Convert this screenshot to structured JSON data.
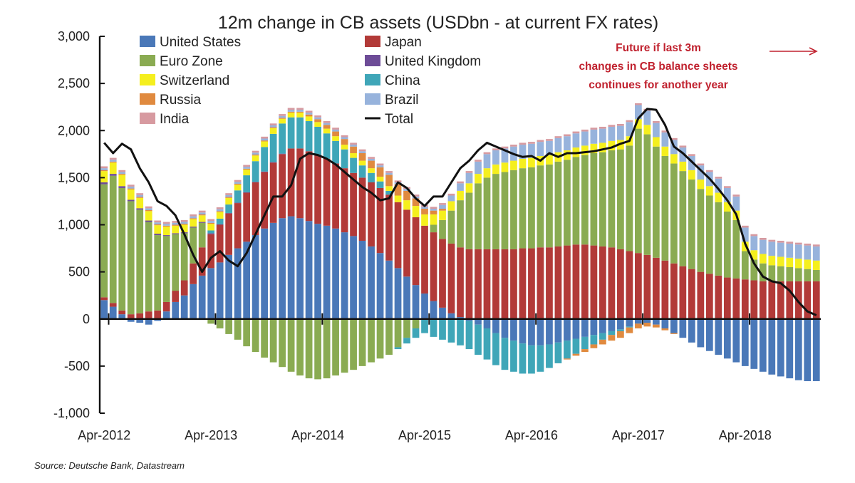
{
  "chart_data": {
    "type": "bar",
    "stacked": true,
    "title": "12m change in CB assets (USDbn - at current FX rates)",
    "source": "Source: Deutsche Bank, Datastream",
    "annotation": [
      "Future if last 3m",
      "changes in CB balance sheets",
      "continues for another year"
    ],
    "xlabel": "",
    "ylabel": "",
    "ylim": [
      -1000,
      3000
    ],
    "yticks": [
      -1000,
      -500,
      0,
      500,
      1000,
      1500,
      2000,
      2500,
      3000
    ],
    "ytick_labels": [
      "-1,000",
      "-500",
      "0",
      "500",
      "1,000",
      "1,500",
      "2,000",
      "2,500",
      "3,000"
    ],
    "xtick_labels": [
      "Apr-2012",
      "Apr-2013",
      "Apr-2014",
      "Apr-2015",
      "Apr-2016",
      "Apr-2017",
      "Apr-2018"
    ],
    "xtick_index": [
      0,
      12,
      24,
      36,
      48,
      60,
      72
    ],
    "legend_position": "top-left",
    "grid": false,
    "categories": [
      "Apr-2012",
      "May-2012",
      "Jun-2012",
      "Jul-2012",
      "Aug-2012",
      "Sep-2012",
      "Oct-2012",
      "Nov-2012",
      "Dec-2012",
      "Jan-2013",
      "Feb-2013",
      "Mar-2013",
      "Apr-2013",
      "May-2013",
      "Jun-2013",
      "Jul-2013",
      "Aug-2013",
      "Sep-2013",
      "Oct-2013",
      "Nov-2013",
      "Dec-2013",
      "Jan-2014",
      "Feb-2014",
      "Mar-2014",
      "Apr-2014",
      "May-2014",
      "Jun-2014",
      "Jul-2014",
      "Aug-2014",
      "Sep-2014",
      "Oct-2014",
      "Nov-2014",
      "Dec-2014",
      "Jan-2015",
      "Feb-2015",
      "Mar-2015",
      "Apr-2015",
      "May-2015",
      "Jun-2015",
      "Jul-2015",
      "Aug-2015",
      "Sep-2015",
      "Oct-2015",
      "Nov-2015",
      "Dec-2015",
      "Jan-2016",
      "Feb-2016",
      "Mar-2016",
      "Apr-2016",
      "May-2016",
      "Jun-2016",
      "Jul-2016",
      "Aug-2016",
      "Sep-2016",
      "Oct-2016",
      "Nov-2016",
      "Dec-2016",
      "Jan-2017",
      "Feb-2017",
      "Mar-2017",
      "Apr-2017",
      "May-2017",
      "Jun-2017",
      "Jul-2017",
      "Aug-2017",
      "Sep-2017",
      "Oct-2017",
      "Nov-2017",
      "Dec-2017",
      "Jan-2018",
      "Feb-2018",
      "Mar-2018",
      "Apr-2018",
      "May-2018",
      "Jun-2018",
      "Jul-2018",
      "Aug-2018",
      "Sep-2018",
      "Oct-2018",
      "Nov-2018",
      "Dec-2018"
    ],
    "series": [
      {
        "name": "United States",
        "color": "#4a78b8",
        "values": [
          200,
          130,
          50,
          -30,
          -40,
          -60,
          -20,
          80,
          180,
          250,
          370,
          460,
          540,
          600,
          680,
          750,
          820,
          890,
          960,
          1020,
          1070,
          1090,
          1070,
          1040,
          1010,
          990,
          960,
          920,
          880,
          830,
          770,
          700,
          620,
          540,
          450,
          360,
          270,
          190,
          120,
          60,
          20,
          -20,
          -60,
          -100,
          -150,
          -200,
          -230,
          -260,
          -280,
          -280,
          -270,
          -250,
          -230,
          -210,
          -190,
          -170,
          -150,
          -130,
          -110,
          -80,
          -50,
          -40,
          -60,
          -100,
          -150,
          -200,
          -250,
          -300,
          -340,
          -380,
          -420,
          -460,
          -500,
          -530,
          -560,
          -590,
          -610,
          -630,
          -650,
          -660,
          -660
        ]
      },
      {
        "name": "Japan",
        "color": "#b23a38",
        "values": [
          30,
          40,
          40,
          50,
          60,
          80,
          90,
          100,
          120,
          160,
          220,
          300,
          360,
          400,
          440,
          480,
          520,
          560,
          600,
          640,
          680,
          720,
          740,
          740,
          730,
          710,
          690,
          680,
          670,
          670,
          680,
          690,
          700,
          700,
          710,
          720,
          720,
          730,
          730,
          740,
          740,
          740,
          740,
          740,
          740,
          740,
          740,
          750,
          750,
          760,
          760,
          770,
          780,
          790,
          790,
          780,
          770,
          760,
          740,
          720,
          700,
          680,
          650,
          620,
          590,
          560,
          530,
          500,
          480,
          460,
          440,
          430,
          420,
          410,
          400,
          400,
          400,
          400,
          400,
          400,
          400
        ]
      },
      {
        "name": "Euro Zone",
        "color": "#8aab52",
        "values": [
          1200,
          1350,
          1300,
          1200,
          1100,
          950,
          800,
          700,
          600,
          500,
          380,
          260,
          -50,
          -100,
          -160,
          -220,
          -290,
          -350,
          -410,
          -460,
          -510,
          -560,
          -600,
          -630,
          -640,
          -630,
          -600,
          -570,
          -540,
          -500,
          -460,
          -420,
          -380,
          -300,
          -200,
          -100,
          0,
          80,
          200,
          350,
          500,
          600,
          700,
          760,
          800,
          820,
          840,
          850,
          860,
          870,
          880,
          900,
          910,
          930,
          950,
          980,
          1000,
          1030,
          1060,
          1120,
          1320,
          1280,
          1180,
          1110,
          1060,
          1010,
          950,
          880,
          830,
          780,
          700,
          620,
          300,
          220,
          190,
          170,
          160,
          150,
          140,
          130,
          120
        ]
      },
      {
        "name": "United Kingdom",
        "color": "#6d4c97",
        "values": [
          20,
          20,
          20,
          15,
          15,
          15,
          15,
          10,
          10,
          10,
          10,
          10,
          10,
          5,
          5,
          5,
          5,
          5,
          5,
          5,
          5,
          0,
          0,
          0,
          0,
          0,
          0,
          0,
          0,
          0,
          0,
          0,
          0,
          0,
          0,
          0,
          0,
          0,
          0,
          0,
          0,
          0,
          0,
          0,
          0,
          0,
          0,
          0,
          0,
          0,
          0,
          0,
          0,
          0,
          0,
          0,
          0,
          0,
          0,
          0,
          0,
          0,
          0,
          0,
          0,
          0,
          0,
          0,
          0,
          0,
          0,
          0,
          0,
          0,
          0,
          0,
          0,
          0,
          0,
          0,
          0
        ]
      },
      {
        "name": "China",
        "color": "#3fa6b8",
        "values": [
          0,
          0,
          0,
          0,
          0,
          0,
          0,
          0,
          0,
          0,
          0,
          0,
          30,
          60,
          90,
          130,
          180,
          220,
          260,
          300,
          320,
          330,
          330,
          320,
          300,
          270,
          240,
          200,
          160,
          130,
          100,
          70,
          40,
          -20,
          -60,
          -100,
          -150,
          -190,
          -220,
          -250,
          -280,
          -300,
          -320,
          -330,
          -340,
          -340,
          -330,
          -320,
          -300,
          -280,
          -250,
          -220,
          -190,
          -160,
          -130,
          -100,
          -70,
          -40,
          -20,
          -10,
          0,
          0,
          0,
          0,
          0,
          0,
          0,
          0,
          0,
          0,
          0,
          0,
          0,
          0,
          0,
          0,
          0,
          0,
          0,
          0,
          0
        ]
      },
      {
        "name": "Switzerland",
        "color": "#f5ef1e",
        "values": [
          120,
          120,
          120,
          110,
          110,
          100,
          90,
          90,
          80,
          80,
          80,
          70,
          70,
          70,
          70,
          60,
          60,
          60,
          60,
          60,
          50,
          50,
          50,
          50,
          50,
          50,
          50,
          50,
          50,
          50,
          50,
          50,
          50,
          70,
          100,
          120,
          120,
          110,
          100,
          100,
          100,
          100,
          100,
          100,
          100,
          100,
          100,
          100,
          100,
          100,
          100,
          100,
          100,
          100,
          100,
          100,
          100,
          100,
          100,
          100,
          100,
          100,
          100,
          100,
          100,
          100,
          100,
          100,
          100,
          100,
          100,
          100,
          100,
          100,
          100,
          100,
          100,
          100,
          100,
          100,
          100
        ]
      },
      {
        "name": "Russia",
        "color": "#e08a3f",
        "values": [
          10,
          10,
          10,
          10,
          10,
          10,
          10,
          10,
          10,
          10,
          10,
          10,
          10,
          10,
          10,
          10,
          10,
          10,
          10,
          10,
          10,
          10,
          10,
          20,
          30,
          40,
          50,
          60,
          70,
          80,
          80,
          100,
          120,
          120,
          100,
          80,
          60,
          40,
          20,
          0,
          0,
          0,
          0,
          0,
          0,
          0,
          0,
          0,
          0,
          0,
          0,
          0,
          -10,
          -20,
          -30,
          -40,
          -50,
          -60,
          -70,
          -60,
          -50,
          -40,
          -30,
          -20,
          -10,
          0,
          0,
          0,
          0,
          0,
          0,
          0,
          0,
          0,
          0,
          0,
          0,
          0,
          0,
          0,
          0
        ]
      },
      {
        "name": "Brazil",
        "color": "#97b3dc",
        "values": [
          20,
          20,
          20,
          20,
          20,
          20,
          20,
          20,
          20,
          20,
          20,
          20,
          20,
          20,
          20,
          20,
          20,
          20,
          20,
          20,
          20,
          20,
          20,
          20,
          20,
          20,
          20,
          20,
          20,
          20,
          20,
          20,
          20,
          20,
          20,
          20,
          20,
          20,
          40,
          60,
          80,
          110,
          130,
          150,
          150,
          150,
          150,
          150,
          150,
          150,
          150,
          150,
          150,
          150,
          150,
          150,
          150,
          150,
          150,
          150,
          150,
          150,
          150,
          150,
          150,
          150,
          150,
          150,
          150,
          150,
          150,
          150,
          150,
          150,
          150,
          150,
          150,
          150,
          150,
          150,
          150
        ]
      },
      {
        "name": "India",
        "color": "#d79aa0",
        "values": [
          20,
          20,
          20,
          20,
          20,
          20,
          20,
          20,
          20,
          20,
          20,
          20,
          20,
          20,
          20,
          20,
          20,
          20,
          20,
          20,
          20,
          20,
          20,
          20,
          20,
          20,
          20,
          20,
          20,
          20,
          20,
          20,
          20,
          20,
          20,
          20,
          20,
          20,
          20,
          20,
          20,
          20,
          20,
          20,
          20,
          20,
          20,
          20,
          20,
          20,
          20,
          20,
          20,
          20,
          20,
          20,
          20,
          20,
          20,
          20,
          20,
          20,
          20,
          20,
          20,
          20,
          20,
          20,
          20,
          20,
          20,
          20,
          20,
          20,
          20,
          20,
          20,
          20,
          20,
          20,
          20
        ]
      },
      {
        "name": "Total",
        "type": "line",
        "color": "#111111",
        "values": [
          1870,
          1760,
          1860,
          1800,
          1600,
          1450,
          1250,
          1200,
          1100,
          900,
          680,
          500,
          650,
          720,
          620,
          560,
          700,
          900,
          1100,
          1300,
          1300,
          1420,
          1700,
          1760,
          1740,
          1700,
          1640,
          1560,
          1480,
          1400,
          1340,
          1260,
          1280,
          1450,
          1390,
          1280,
          1200,
          1300,
          1300,
          1450,
          1600,
          1680,
          1790,
          1870,
          1830,
          1790,
          1750,
          1720,
          1730,
          1680,
          1760,
          1720,
          1760,
          1760,
          1770,
          1780,
          1800,
          1820,
          1860,
          1890,
          2130,
          2230,
          2220,
          2060,
          1830,
          1760,
          1670,
          1580,
          1490,
          1380,
          1260,
          1110,
          800,
          590,
          450,
          400,
          380,
          300,
          180,
          80,
          40
        ]
      }
    ]
  }
}
